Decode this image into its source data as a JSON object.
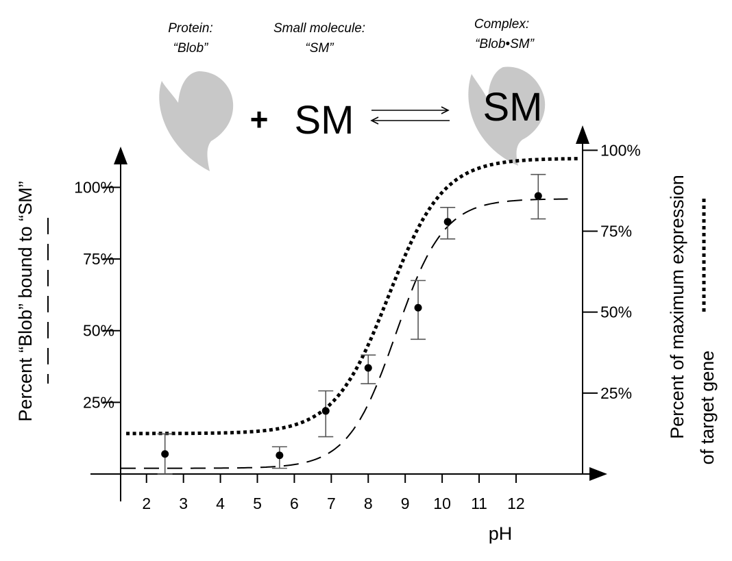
{
  "header": {
    "protein_label": "Protein:",
    "protein_name": "“Blob”",
    "sm_label": "Small molecule:",
    "sm_name": "“SM”",
    "complex_label": "Complex:",
    "complex_name": "“Blob•SM”"
  },
  "equation": {
    "plus": "+",
    "sm": "SM",
    "complex_sm": "SM"
  },
  "chart_data": {
    "type": "scatter",
    "xlabel": "pH",
    "ylabel_left": "Percent  “Blob” bound to “SM”",
    "ylabel_right_line1": "Percent of maximum expression",
    "ylabel_right_line2": "of target gene",
    "x_ticks": [
      2,
      3,
      4,
      5,
      6,
      7,
      8,
      9,
      10,
      11,
      12
    ],
    "x_tick_labels": [
      "2",
      "3",
      "4",
      "5",
      "6",
      "7",
      "8",
      "9",
      "10",
      "11",
      "12"
    ],
    "left_y_ticks": [
      25,
      50,
      75,
      100
    ],
    "left_y_tick_labels": [
      "25%",
      "50%",
      "75%",
      "100%"
    ],
    "right_y_ticks": [
      25,
      50,
      75,
      100
    ],
    "right_y_tick_labels": [
      "25%",
      "50%",
      "75%",
      "100%"
    ],
    "xlim": [
      1.3,
      13.8
    ],
    "left_ylim": [
      0,
      108
    ],
    "right_ylim": [
      0,
      106
    ],
    "points": [
      {
        "x": 2.5,
        "y": 7,
        "err_low": 7,
        "err_high": 7
      },
      {
        "x": 5.6,
        "y": 6.5,
        "err_low": 4.5,
        "err_high": 3
      },
      {
        "x": 6.85,
        "y": 22,
        "err_low": 9,
        "err_high": 7
      },
      {
        "x": 8.0,
        "y": 37,
        "err_low": 5.5,
        "err_high": 4.5
      },
      {
        "x": 9.35,
        "y": 58,
        "err_low": 11,
        "err_high": 9.5
      },
      {
        "x": 10.15,
        "y": 88,
        "err_low": 6,
        "err_high": 5
      },
      {
        "x": 12.6,
        "y": 97,
        "err_low": 8,
        "err_high": 7.5
      }
    ],
    "series": [
      {
        "style": "dashed",
        "axis": "left",
        "midpoint": 8.75,
        "slope": 1.55,
        "min": 2,
        "max": 96
      },
      {
        "style": "dotted",
        "axis": "right",
        "midpoint": 8.55,
        "slope": 1.35,
        "min": 12.5,
        "max": 97.5
      }
    ]
  }
}
